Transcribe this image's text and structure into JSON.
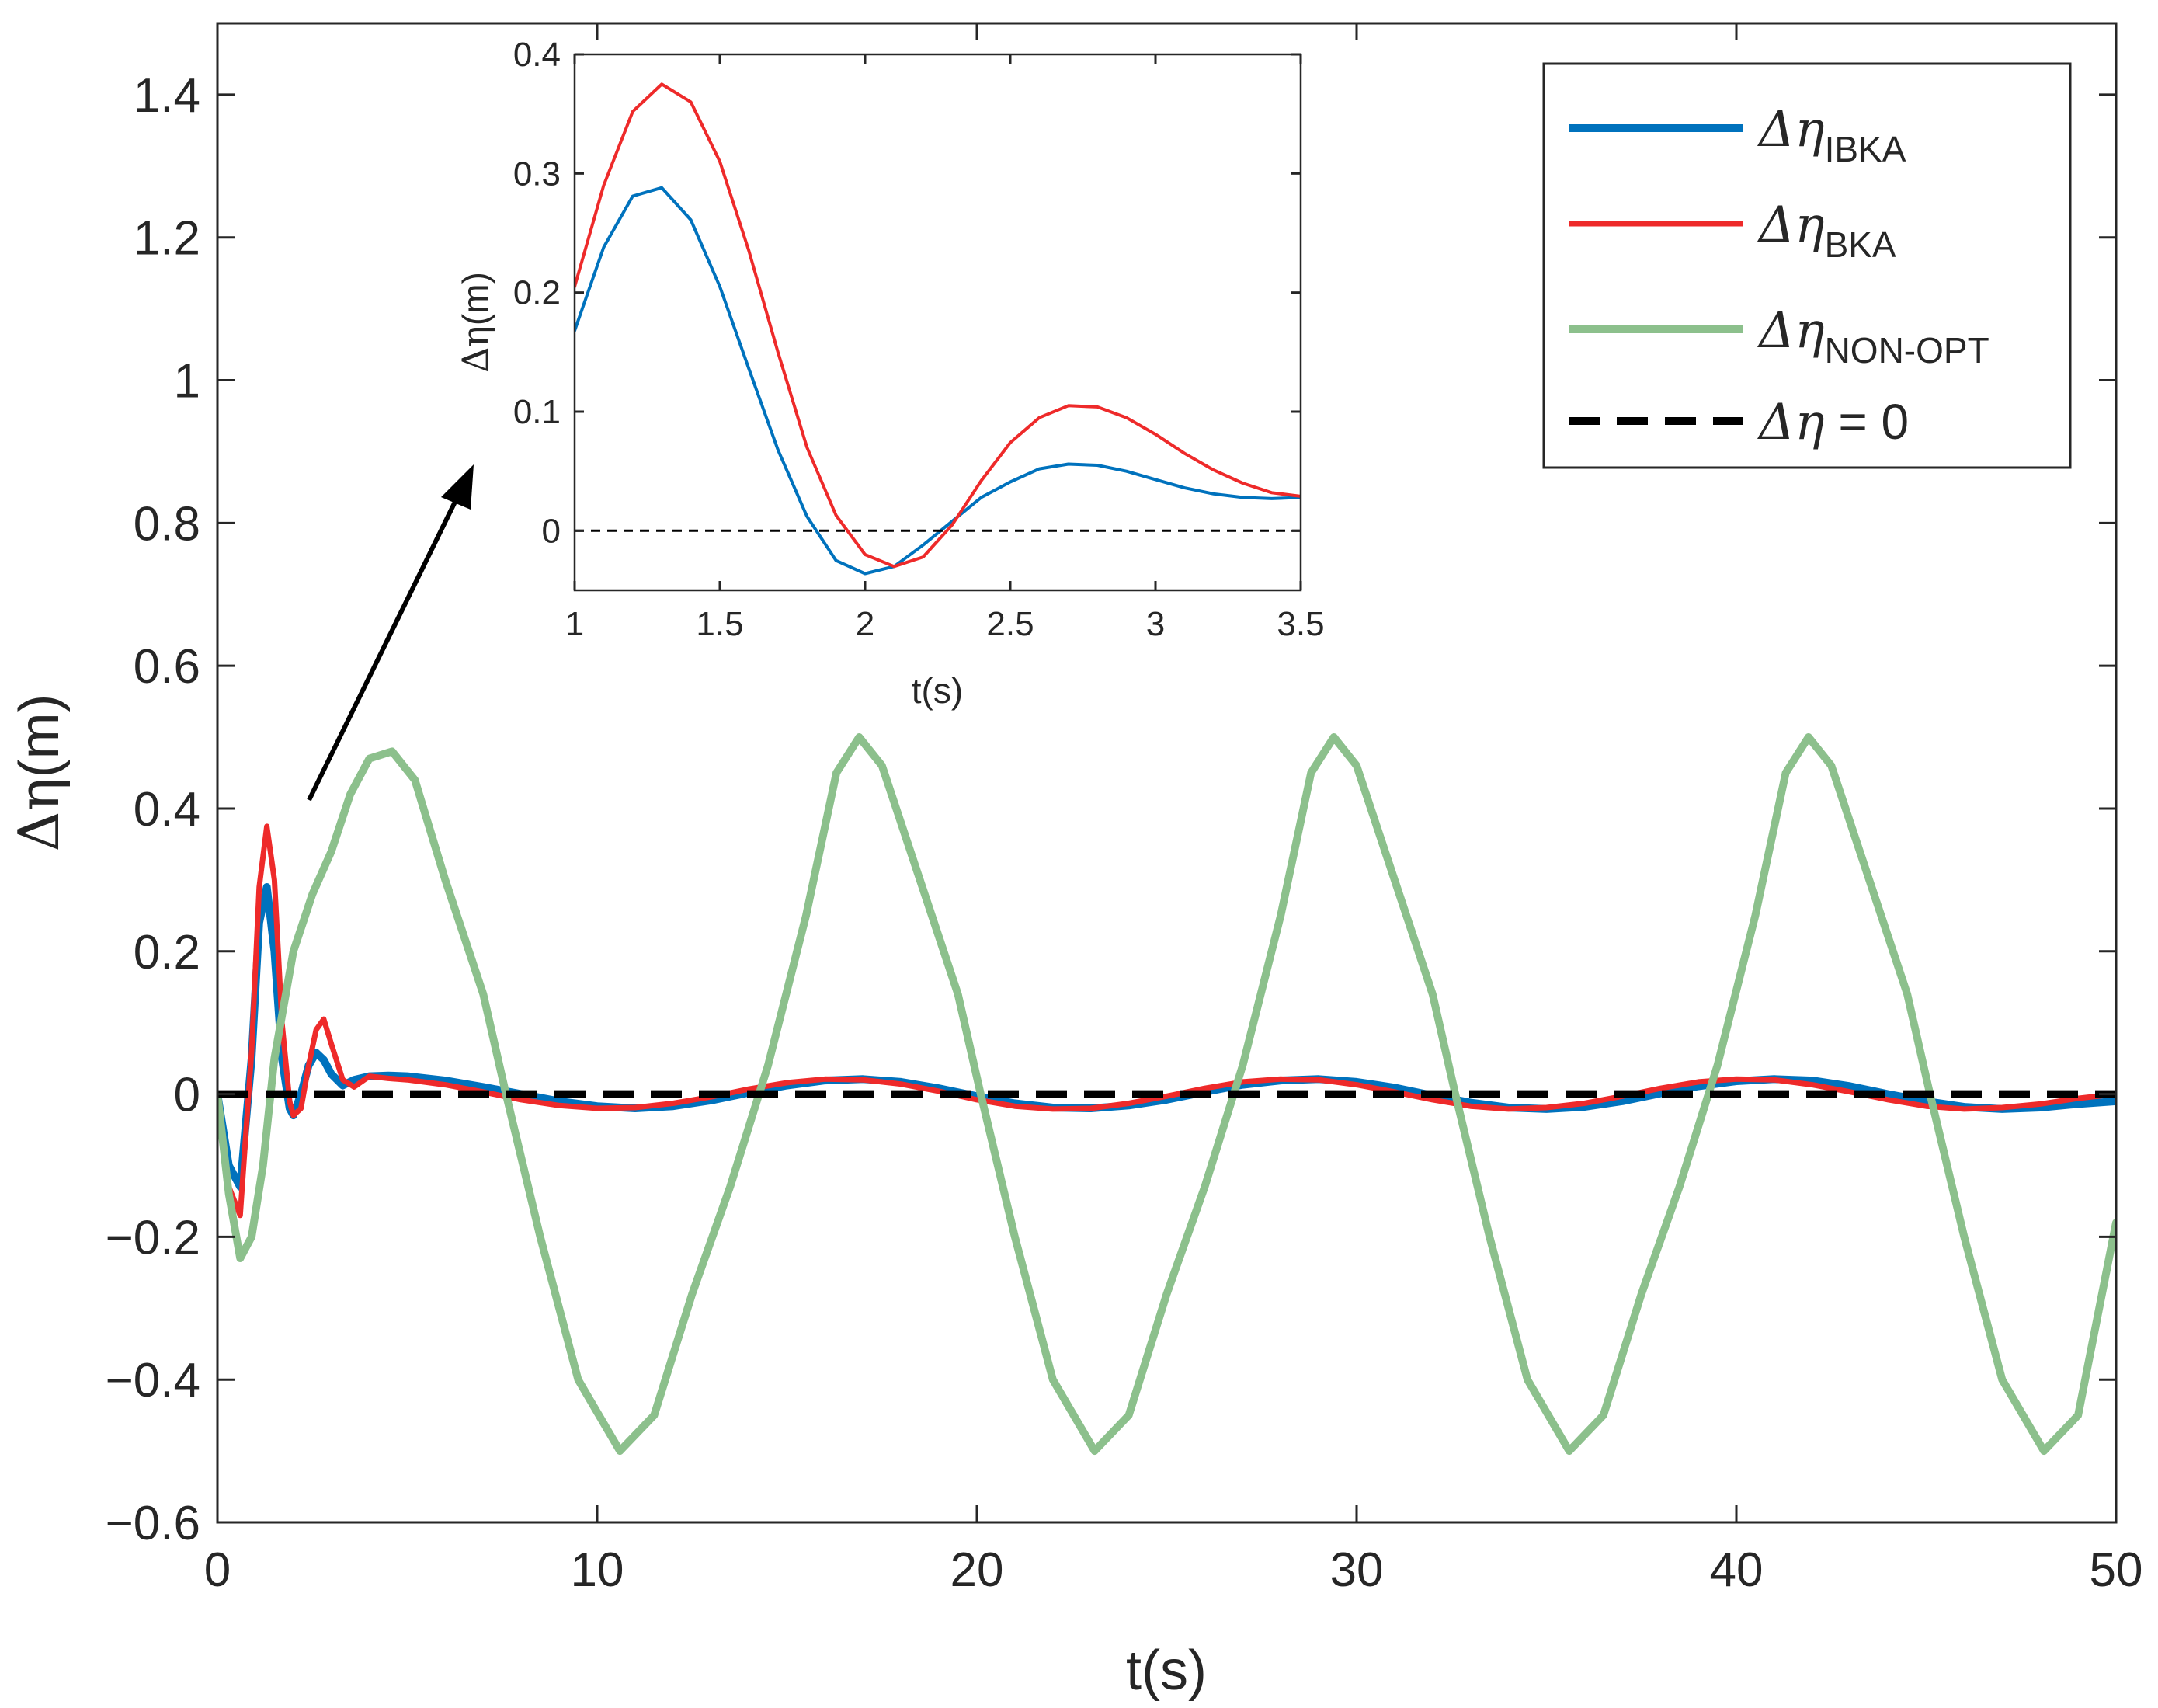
{
  "chart_data": [
    {
      "type": "line",
      "role": "main",
      "title": "",
      "xlabel": "t(s)",
      "ylabel_symbol": "Δη",
      "ylabel_unit": "(m)",
      "xlim": [
        0,
        50
      ],
      "ylim": [
        -0.6,
        1.5
      ],
      "xticks": [
        0,
        10,
        20,
        30,
        40,
        50
      ],
      "xtick_labels": [
        "0",
        "10",
        "20",
        "30",
        "40",
        "50"
      ],
      "yticks": [
        -0.6,
        -0.4,
        -0.2,
        0,
        0.2,
        0.4,
        0.6,
        0.8,
        1,
        1.2,
        1.4
      ],
      "ytick_labels": [
        "−0.6",
        "−0.4",
        "−0.2",
        "0",
        "0.2",
        "0.4",
        "0.6",
        "0.8",
        "1",
        "1.2",
        "1.4"
      ],
      "grid": false,
      "legend_position": "top-right",
      "series": [
        {
          "name": "IBKA",
          "legend_base": "Δη",
          "legend_sub": "IBKA",
          "color": "#0072BD",
          "style": "solid",
          "x": [
            0,
            0.3,
            0.6,
            0.9,
            1.1,
            1.3,
            1.5,
            1.7,
            1.9,
            2.0,
            2.2,
            2.4,
            2.6,
            2.8,
            3.0,
            3.3,
            3.6,
            4.0,
            4.5,
            5.0,
            6.0,
            7.0,
            8.0,
            9.0,
            10.0,
            11.0,
            12.0,
            13.0,
            14.0,
            15.0,
            16.0,
            17.0,
            18.0,
            19.0,
            20.0,
            21.0,
            22.0,
            23.0,
            24.0,
            25.0,
            26.0,
            27.0,
            28.0,
            29.0,
            30.0,
            31.0,
            32.0,
            33.0,
            34.0,
            35.0,
            36.0,
            37.0,
            38.0,
            39.0,
            40.0,
            41.0,
            42.0,
            43.0,
            44.0,
            45.0,
            46.0,
            47.0,
            48.0,
            49.0,
            50.0
          ],
          "y": [
            0.0,
            -0.1,
            -0.13,
            0.05,
            0.24,
            0.29,
            0.2,
            0.05,
            -0.02,
            -0.03,
            0.0,
            0.04,
            0.058,
            0.048,
            0.028,
            0.012,
            0.02,
            0.025,
            0.026,
            0.025,
            0.019,
            0.01,
            0.0,
            -0.01,
            -0.017,
            -0.02,
            -0.017,
            -0.009,
            0.002,
            0.012,
            0.019,
            0.021,
            0.017,
            0.008,
            -0.003,
            -0.013,
            -0.019,
            -0.02,
            -0.016,
            -0.008,
            0.003,
            0.013,
            0.019,
            0.021,
            0.017,
            0.009,
            -0.002,
            -0.012,
            -0.019,
            -0.021,
            -0.018,
            -0.01,
            0.001,
            0.011,
            0.018,
            0.021,
            0.019,
            0.011,
            0.0,
            -0.01,
            -0.018,
            -0.021,
            -0.019,
            -0.014,
            -0.01
          ]
        },
        {
          "name": "BKA",
          "legend_base": "Δη",
          "legend_sub": "BKA",
          "color": "#EE2A2A",
          "style": "solid",
          "x": [
            0,
            0.3,
            0.6,
            0.9,
            1.1,
            1.3,
            1.5,
            1.7,
            1.9,
            2.0,
            2.2,
            2.4,
            2.6,
            2.8,
            3.0,
            3.3,
            3.6,
            4.0,
            4.5,
            5.0,
            6.0,
            7.0,
            8.0,
            9.0,
            10.0,
            11.0,
            12.0,
            13.0,
            14.0,
            15.0,
            16.0,
            17.0,
            18.0,
            19.0,
            20.0,
            21.0,
            22.0,
            23.0,
            24.0,
            25.0,
            26.0,
            27.0,
            28.0,
            29.0,
            30.0,
            31.0,
            32.0,
            33.0,
            34.0,
            35.0,
            36.0,
            37.0,
            38.0,
            39.0,
            40.0,
            41.0,
            42.0,
            43.0,
            44.0,
            45.0,
            46.0,
            47.0,
            48.0,
            49.0,
            50.0
          ],
          "y": [
            0.0,
            -0.13,
            -0.17,
            0.06,
            0.29,
            0.375,
            0.3,
            0.1,
            -0.01,
            -0.03,
            -0.02,
            0.04,
            0.09,
            0.105,
            0.07,
            0.02,
            0.01,
            0.025,
            0.022,
            0.02,
            0.013,
            0.003,
            -0.008,
            -0.016,
            -0.02,
            -0.019,
            -0.013,
            -0.004,
            0.007,
            0.016,
            0.021,
            0.02,
            0.014,
            0.004,
            -0.008,
            -0.017,
            -0.021,
            -0.02,
            -0.013,
            -0.003,
            0.008,
            0.017,
            0.021,
            0.02,
            0.013,
            0.003,
            -0.008,
            -0.017,
            -0.021,
            -0.019,
            -0.013,
            -0.003,
            0.008,
            0.017,
            0.021,
            0.02,
            0.013,
            0.003,
            -0.008,
            -0.017,
            -0.021,
            -0.019,
            -0.014,
            -0.006,
            0.0
          ]
        },
        {
          "name": "NON-OPT",
          "legend_base": "Δη",
          "legend_sub": "NON-OPT",
          "color": "#8CC08C",
          "style": "solid",
          "x": [
            0,
            0.3,
            0.6,
            0.9,
            1.2,
            1.5,
            2.0,
            2.5,
            3.0,
            3.5,
            4.0,
            4.6,
            5.2,
            6.0,
            7.0,
            7.6,
            8.5,
            9.5,
            10.6,
            11.5,
            12.5,
            13.5,
            14.5,
            15.5,
            16.3,
            16.9,
            17.5,
            18.5,
            19.5,
            20.1,
            21.0,
            22.0,
            23.1,
            24.0,
            25.0,
            26.0,
            27.0,
            28.0,
            28.8,
            29.4,
            30.0,
            31.0,
            32.0,
            32.6,
            33.5,
            34.5,
            35.6,
            36.5,
            37.5,
            38.5,
            39.5,
            40.5,
            41.3,
            41.9,
            42.5,
            43.5,
            44.5,
            45.1,
            46.0,
            47.0,
            48.1,
            49.0,
            50.0
          ],
          "y": [
            0.0,
            -0.14,
            -0.23,
            -0.2,
            -0.1,
            0.05,
            0.2,
            0.28,
            0.34,
            0.42,
            0.47,
            0.48,
            0.44,
            0.3,
            0.14,
            0.0,
            -0.2,
            -0.4,
            -0.5,
            -0.45,
            -0.28,
            -0.13,
            0.04,
            0.25,
            0.45,
            0.5,
            0.46,
            0.3,
            0.14,
            0.0,
            -0.2,
            -0.4,
            -0.5,
            -0.45,
            -0.28,
            -0.13,
            0.04,
            0.25,
            0.45,
            0.5,
            0.46,
            0.3,
            0.14,
            0.0,
            -0.2,
            -0.4,
            -0.5,
            -0.45,
            -0.28,
            -0.13,
            0.04,
            0.25,
            0.45,
            0.5,
            0.46,
            0.3,
            0.14,
            0.0,
            -0.2,
            -0.4,
            -0.5,
            -0.45,
            -0.18
          ]
        },
        {
          "name": "zero",
          "legend_base": "Δη",
          "legend_rest": " = 0",
          "color": "#000000",
          "style": "dashed",
          "x": [
            0,
            50
          ],
          "y": [
            0,
            0
          ]
        }
      ]
    },
    {
      "type": "line",
      "role": "inset",
      "title": "",
      "xlabel": "t(s)",
      "ylabel_symbol": "Δη",
      "ylabel_unit": "(m)",
      "xlim": [
        1,
        3.5
      ],
      "ylim": [
        -0.05,
        0.4
      ],
      "xticks": [
        1,
        1.5,
        2,
        2.5,
        3,
        3.5
      ],
      "xtick_labels": [
        "1",
        "1.5",
        "2",
        "2.5",
        "3",
        "3.5"
      ],
      "yticks": [
        0,
        0.1,
        0.2,
        0.3,
        0.4
      ],
      "ytick_labels": [
        "0",
        "0.1",
        "0.2",
        "0.3",
        "0.4"
      ],
      "grid": false,
      "series": [
        {
          "name": "IBKA",
          "color": "#0072BD",
          "style": "solid",
          "x": [
            1.0,
            1.1,
            1.2,
            1.3,
            1.4,
            1.5,
            1.6,
            1.7,
            1.8,
            1.9,
            2.0,
            2.1,
            2.2,
            2.3,
            2.4,
            2.5,
            2.6,
            2.7,
            2.8,
            2.9,
            3.0,
            3.1,
            3.2,
            3.3,
            3.4,
            3.5
          ],
          "y": [
            0.168,
            0.238,
            0.281,
            0.288,
            0.261,
            0.205,
            0.136,
            0.068,
            0.012,
            -0.025,
            -0.036,
            -0.03,
            -0.012,
            0.008,
            0.028,
            0.041,
            0.052,
            0.056,
            0.055,
            0.05,
            0.043,
            0.036,
            0.031,
            0.028,
            0.027,
            0.028
          ]
        },
        {
          "name": "BKA",
          "color": "#EE2A2A",
          "style": "solid",
          "x": [
            1.0,
            1.1,
            1.2,
            1.3,
            1.4,
            1.5,
            1.6,
            1.7,
            1.8,
            1.9,
            2.0,
            2.1,
            2.2,
            2.3,
            2.4,
            2.5,
            2.6,
            2.7,
            2.8,
            2.9,
            3.0,
            3.1,
            3.2,
            3.3,
            3.4,
            3.5
          ],
          "y": [
            0.205,
            0.29,
            0.352,
            0.375,
            0.36,
            0.31,
            0.235,
            0.15,
            0.07,
            0.013,
            -0.02,
            -0.03,
            -0.022,
            0.005,
            0.042,
            0.074,
            0.095,
            0.105,
            0.104,
            0.095,
            0.081,
            0.065,
            0.051,
            0.04,
            0.032,
            0.029
          ]
        },
        {
          "name": "zero",
          "color": "#000000",
          "style": "dashed",
          "x": [
            1,
            3.5
          ],
          "y": [
            0,
            0
          ]
        }
      ]
    }
  ]
}
